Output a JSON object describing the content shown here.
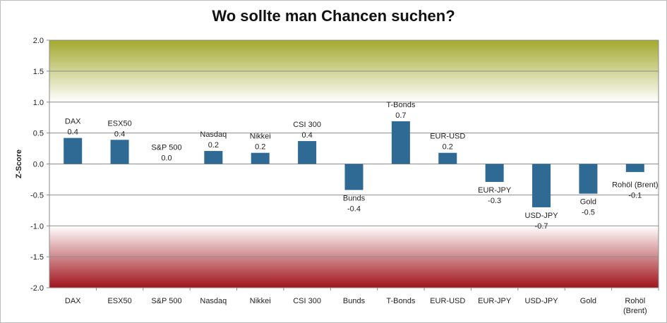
{
  "chart_data": {
    "type": "bar",
    "title": "Wo sollte man Chancen suchen?",
    "ylabel": "Z-Score",
    "xlabel": "",
    "ylim": [
      -2.0,
      2.0
    ],
    "yticks": [
      "2.0",
      "1.5",
      "1.0",
      "0.5",
      "0.0",
      "-0.5",
      "-1.0",
      "-1.5",
      "-2.0"
    ],
    "categories": [
      "DAX",
      "ESX50",
      "S&P 500",
      "Nasdaq",
      "Nikkei",
      "CSI 300",
      "Bunds",
      "T-Bonds",
      "EUR-USD",
      "EUR-JPY",
      "USD-JPY",
      "Gold",
      "Rohöl (Brent)"
    ],
    "values": [
      0.42,
      0.39,
      0.0,
      0.21,
      0.18,
      0.37,
      -0.42,
      0.69,
      0.18,
      -0.29,
      -0.7,
      -0.48,
      -0.13
    ],
    "data_labels": [
      "0.4",
      "0.4",
      "0.0",
      "0.2",
      "0.2",
      "0.4",
      "-0.4",
      "0.7",
      "0.2",
      "-0.3",
      "-0.7",
      "-0.5",
      "-0.1"
    ],
    "bar_color": "#2e6a93",
    "zone_top_color": "#a3a92d",
    "zone_bottom_color": "#a0141c",
    "grid": true,
    "legend": "none"
  }
}
